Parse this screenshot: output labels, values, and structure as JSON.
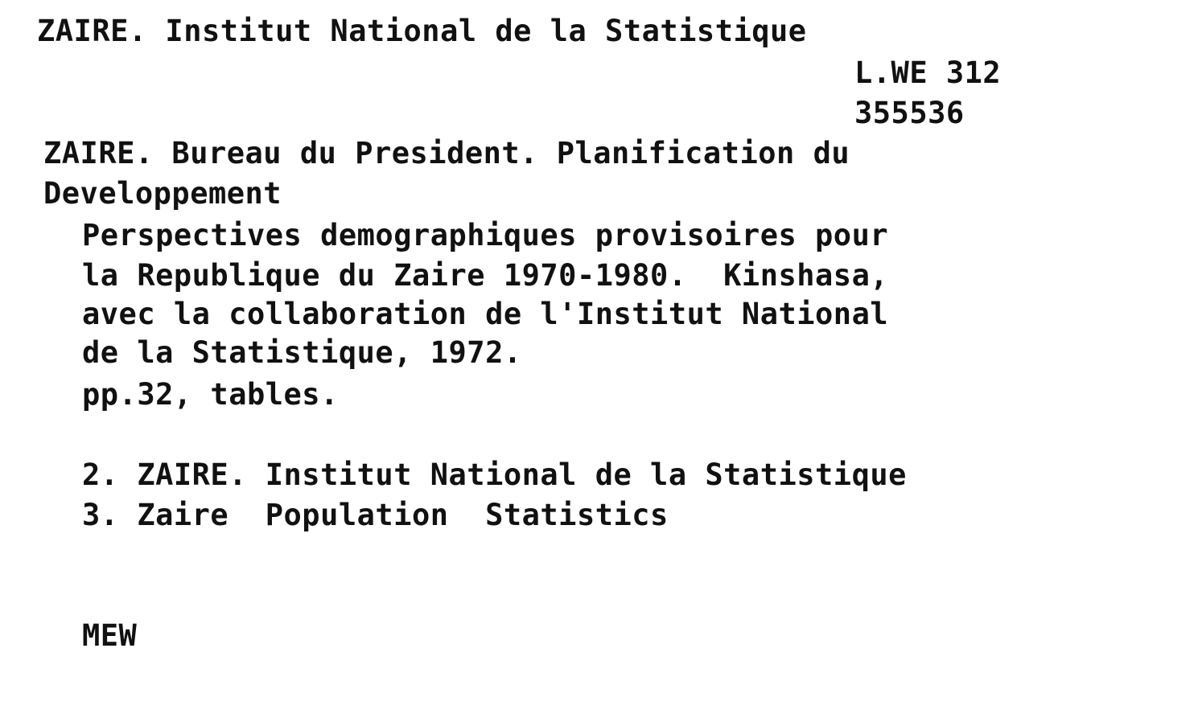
{
  "card": {
    "heading": "ZAIRE. Institut National de la Statistique",
    "call_number": [
      "L.WE 312",
      "355536"
    ],
    "author": [
      "ZAIRE. Bureau du President. Planification du",
      "Developpement"
    ],
    "description": [
      "Perspectives demographiques provisoires pour",
      "la Republique du Zaire 1970-1980.  Kinshasa,",
      "avec la collaboration de l'Institut National",
      "de la Statistique, 1972.",
      "pp.32, tables."
    ],
    "subjects": [
      "2. ZAIRE. Institut National de la Statistique",
      "3. Zaire  Population  Statistics"
    ],
    "initials": "MEW"
  }
}
